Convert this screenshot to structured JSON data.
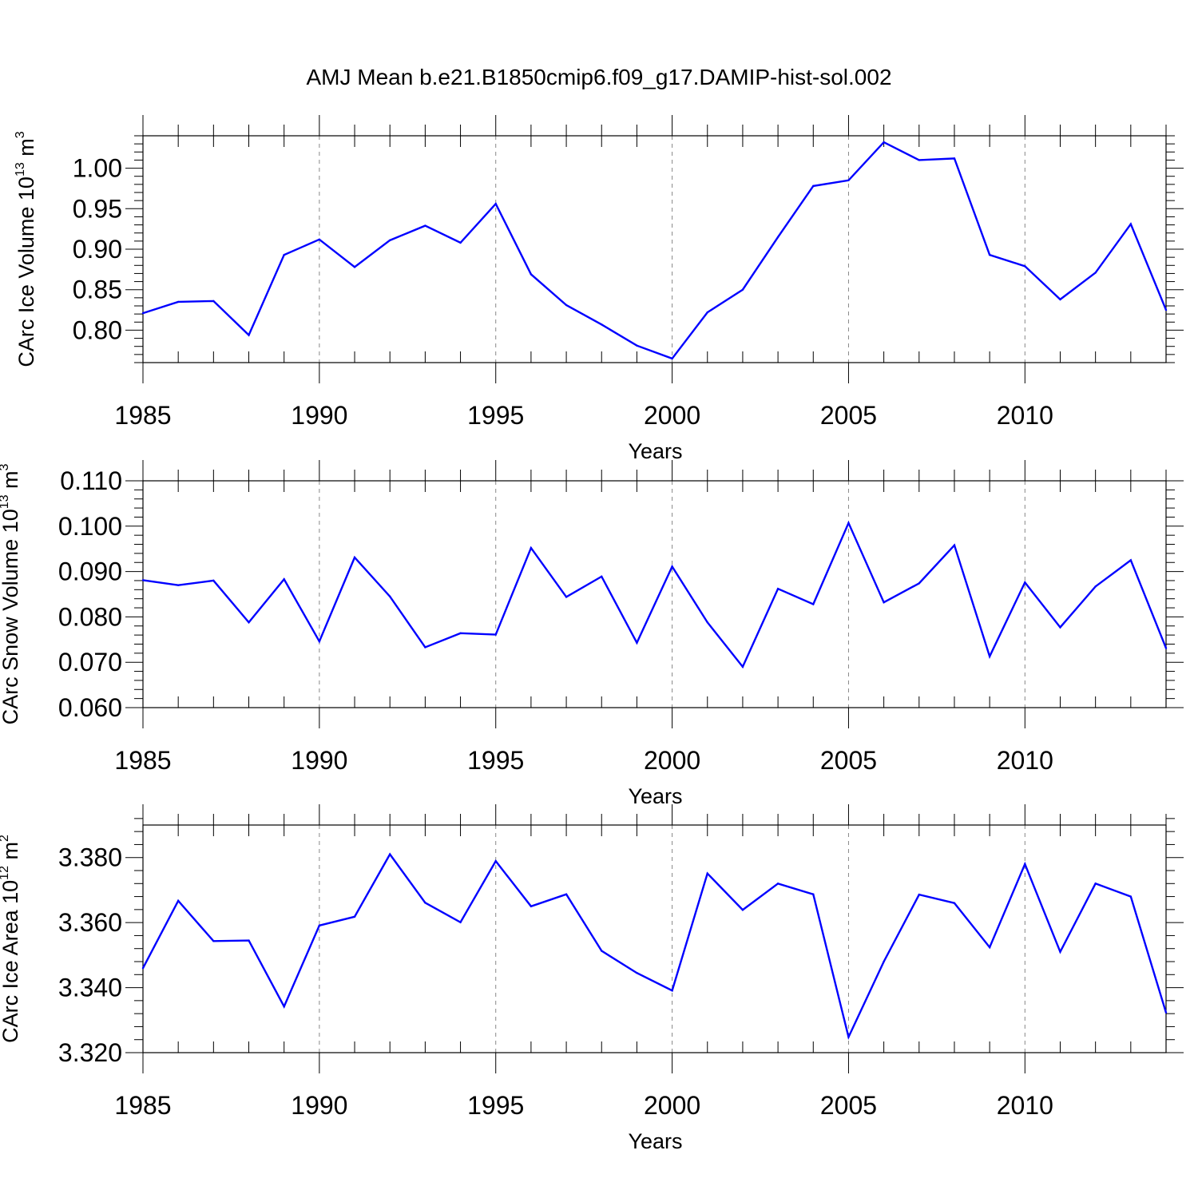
{
  "title": "AMJ Mean b.e21.B1850cmip6.f09_g17.DAMIP-hist-sol.002",
  "colors": {
    "line": "#0000ff",
    "axis": "#000000",
    "grid": "#888888",
    "background": "#ffffff"
  },
  "chart_data": [
    {
      "type": "line",
      "id": "ice-volume",
      "ylabel": "CArc Ice Volume 10",
      "ylabel_exponent": "13",
      "ylabel_unit": "m",
      "ylabel_unit_exponent": "3",
      "xlabel": "Years",
      "xlim": [
        1985,
        2014
      ],
      "ylim": [
        0.76,
        1.04
      ],
      "xticks": [
        1985,
        1990,
        1995,
        2000,
        2005,
        2010
      ],
      "xtick_labels": [
        "1985",
        "1990",
        "1995",
        "2000",
        "2005",
        "2010"
      ],
      "yticks": [
        0.8,
        0.85,
        0.9,
        0.95,
        1.0
      ],
      "ytick_labels": [
        "0.80",
        "0.85",
        "0.90",
        "0.95",
        "1.00"
      ],
      "x": [
        1985,
        1986,
        1987,
        1988,
        1989,
        1990,
        1991,
        1992,
        1993,
        1994,
        1995,
        1996,
        1997,
        1998,
        1999,
        2000,
        2001,
        2002,
        2003,
        2004,
        2005,
        2006,
        2007,
        2008,
        2009,
        2010,
        2011,
        2012,
        2013,
        2014
      ],
      "values": [
        0.821,
        0.835,
        0.836,
        0.794,
        0.893,
        0.912,
        0.878,
        0.911,
        0.929,
        0.908,
        0.956,
        0.869,
        0.831,
        0.807,
        0.781,
        0.765,
        0.822,
        0.85,
        0.915,
        0.978,
        0.985,
        1.032,
        1.01,
        1.012,
        0.893,
        0.879,
        0.838,
        0.871,
        0.931,
        0.825
      ]
    },
    {
      "type": "line",
      "id": "snow-volume",
      "ylabel": "CArc Snow Volume 10",
      "ylabel_exponent": "13",
      "ylabel_unit": "m",
      "ylabel_unit_exponent": "3",
      "xlabel": "Years",
      "xlim": [
        1985,
        2014
      ],
      "ylim": [
        0.06,
        0.11
      ],
      "xticks": [
        1985,
        1990,
        1995,
        2000,
        2005,
        2010
      ],
      "xtick_labels": [
        "1985",
        "1990",
        "1995",
        "2000",
        "2005",
        "2010"
      ],
      "yticks": [
        0.06,
        0.07,
        0.08,
        0.09,
        0.1,
        0.11
      ],
      "ytick_labels": [
        "0.060",
        "0.070",
        "0.080",
        "0.090",
        "0.100",
        "0.110"
      ],
      "x": [
        1985,
        1986,
        1987,
        1988,
        1989,
        1990,
        1991,
        1992,
        1993,
        1994,
        1995,
        1996,
        1997,
        1998,
        1999,
        2000,
        2001,
        2002,
        2003,
        2004,
        2005,
        2006,
        2007,
        2008,
        2009,
        2010,
        2011,
        2012,
        2013,
        2014
      ],
      "values": [
        0.0881,
        0.087,
        0.088,
        0.0788,
        0.0883,
        0.0746,
        0.0931,
        0.0845,
        0.0733,
        0.0764,
        0.0761,
        0.0952,
        0.0844,
        0.0889,
        0.0743,
        0.0911,
        0.0788,
        0.069,
        0.0862,
        0.0828,
        0.1007,
        0.0832,
        0.0874,
        0.0958,
        0.0713,
        0.0876,
        0.0777,
        0.0867,
        0.0925,
        0.0731
      ]
    },
    {
      "type": "line",
      "id": "ice-area",
      "ylabel": "CArc Ice Area 10",
      "ylabel_exponent": "12",
      "ylabel_unit": "m",
      "ylabel_unit_exponent": "2",
      "xlabel": "Years",
      "xlim": [
        1985,
        2014
      ],
      "ylim": [
        3.32,
        3.39
      ],
      "xticks": [
        1985,
        1990,
        1995,
        2000,
        2005,
        2010
      ],
      "xtick_labels": [
        "1985",
        "1990",
        "1995",
        "2000",
        "2005",
        "2010"
      ],
      "yticks": [
        3.32,
        3.34,
        3.36,
        3.38
      ],
      "ytick_labels": [
        "3.320",
        "3.340",
        "3.360",
        "3.380"
      ],
      "x": [
        1985,
        1986,
        1987,
        1988,
        1989,
        1990,
        1991,
        1992,
        1993,
        1994,
        1995,
        1996,
        1997,
        1998,
        1999,
        2000,
        2001,
        2002,
        2003,
        2004,
        2005,
        2006,
        2007,
        2008,
        2009,
        2010,
        2011,
        2012,
        2013,
        2014
      ],
      "values": [
        3.346,
        3.3667,
        3.3543,
        3.3545,
        3.3342,
        3.3591,
        3.3618,
        3.381,
        3.3661,
        3.3601,
        3.3789,
        3.365,
        3.3687,
        3.3513,
        3.3445,
        3.3391,
        3.3751,
        3.3639,
        3.372,
        3.3687,
        3.3248,
        3.348,
        3.3686,
        3.366,
        3.3524,
        3.378,
        3.351,
        3.372,
        3.368,
        3.3323
      ]
    }
  ]
}
